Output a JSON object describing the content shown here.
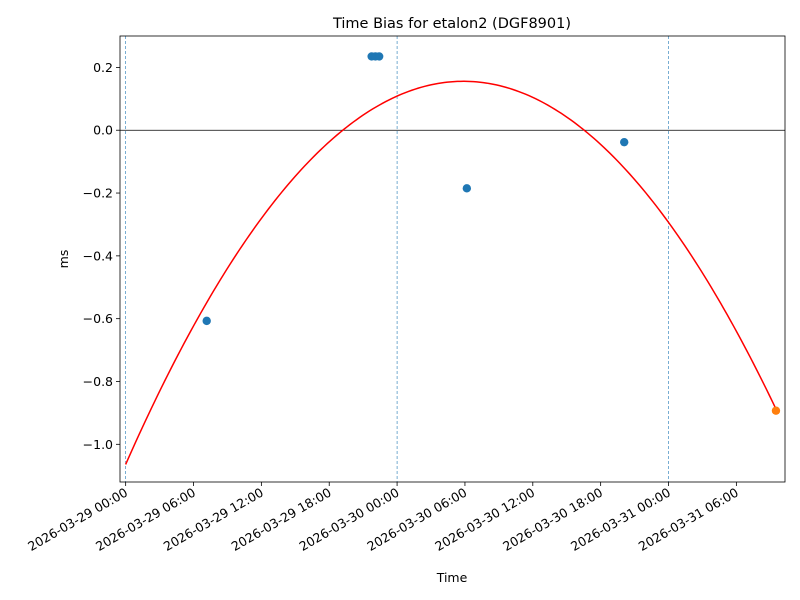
{
  "chart_data": {
    "type": "scatter",
    "title": "Time Bias for etalon2 (DGF8901)",
    "xlabel": "Time",
    "ylabel": "ms",
    "xlim_hours": [
      -0.5,
      58.3
    ],
    "ylim": [
      -1.12,
      0.3
    ],
    "x_epoch": "2026-03-29 00:00",
    "x_ticks": [
      {
        "hours": 0,
        "label": "2026-03-29 00:00"
      },
      {
        "hours": 6,
        "label": "2026-03-29 06:00"
      },
      {
        "hours": 12,
        "label": "2026-03-29 12:00"
      },
      {
        "hours": 18,
        "label": "2026-03-29 18:00"
      },
      {
        "hours": 24,
        "label": "2026-03-30 00:00"
      },
      {
        "hours": 30,
        "label": "2026-03-30 06:00"
      },
      {
        "hours": 36,
        "label": "2026-03-30 12:00"
      },
      {
        "hours": 42,
        "label": "2026-03-30 18:00"
      },
      {
        "hours": 48,
        "label": "2026-03-31 00:00"
      },
      {
        "hours": 54,
        "label": "2026-03-31 06:00"
      }
    ],
    "y_ticks": [
      {
        "value": 0.2,
        "label": "0.2"
      },
      {
        "value": 0.0,
        "label": "0.0"
      },
      {
        "value": -0.2,
        "label": "−0.2"
      },
      {
        "value": -0.4,
        "label": "−0.4"
      },
      {
        "value": -0.6,
        "label": "−0.6"
      },
      {
        "value": -0.8,
        "label": "−0.8"
      },
      {
        "value": -1.0,
        "label": "−1.0"
      }
    ],
    "day_boundaries_hours": [
      0,
      24,
      48
    ],
    "zero_line": 0,
    "grid": false,
    "series": [
      {
        "kind": "scatter",
        "color": "#1f77b4",
        "points": [
          {
            "x": "2026-03-29 07:10",
            "y": -0.607
          },
          {
            "x": "2026-03-29 21:45",
            "y": 0.235
          },
          {
            "x": "2026-03-29 22:05",
            "y": 0.235
          },
          {
            "x": "2026-03-29 22:25",
            "y": 0.235
          },
          {
            "x": "2026-03-30 06:10",
            "y": -0.185
          },
          {
            "x": "2026-03-30 20:05",
            "y": -0.038
          }
        ]
      },
      {
        "kind": "scatter",
        "color": "#ff7f0e",
        "points": [
          {
            "x": "2026-03-31 09:30",
            "y": -0.893
          }
        ]
      },
      {
        "kind": "line",
        "color": "#ff0000",
        "fit": "quadratic",
        "points": [
          {
            "x": "2026-03-29 00:00",
            "y": -1.062
          },
          {
            "x": "2026-03-29 06:00",
            "y": -0.62
          },
          {
            "x": "2026-03-29 12:00",
            "y": -0.284
          },
          {
            "x": "2026-03-29 18:00",
            "y": -0.04
          },
          {
            "x": "2026-03-30 00:00",
            "y": 0.103
          },
          {
            "x": "2026-03-30 06:00",
            "y": 0.153
          },
          {
            "x": "2026-03-30 12:00",
            "y": 0.11
          },
          {
            "x": "2026-03-30 18:00",
            "y": -0.032
          },
          {
            "x": "2026-03-31 00:00",
            "y": -0.3
          },
          {
            "x": "2026-03-31 09:30",
            "y": -0.89
          }
        ]
      }
    ]
  }
}
